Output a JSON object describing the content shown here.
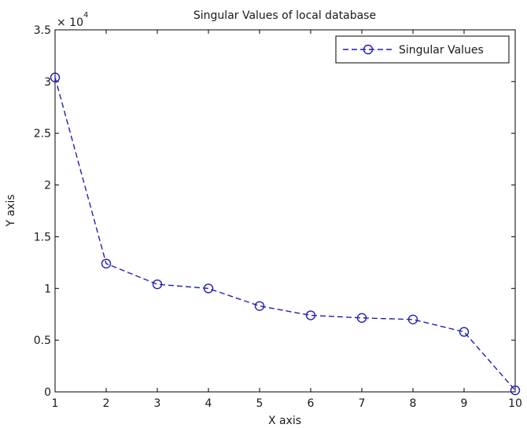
{
  "chart_data": {
    "type": "line",
    "title": "Singular Values of local database",
    "xlabel": "X axis",
    "ylabel": "Y axis",
    "xlim": [
      1,
      10
    ],
    "ylim": [
      0,
      35000
    ],
    "y_multiplier_label": "× 10",
    "y_multiplier_exponent": "4",
    "x_ticks": [
      1,
      2,
      3,
      4,
      5,
      6,
      7,
      8,
      9,
      10
    ],
    "y_ticks": [
      0,
      5000,
      10000,
      15000,
      20000,
      25000,
      30000,
      35000
    ],
    "y_tick_labels": [
      "0",
      "0.5",
      "1",
      "1.5",
      "2",
      "2.5",
      "3",
      "3.5"
    ],
    "grid": false,
    "legend_position": "top-right",
    "series": [
      {
        "name": "Singular Values",
        "color": "#1f1fb4",
        "line_style": "dashed",
        "marker": "circle",
        "x": [
          1,
          2,
          3,
          4,
          5,
          6,
          7,
          8,
          9,
          10
        ],
        "y": [
          30400,
          12400,
          10400,
          10000,
          8300,
          7400,
          7150,
          7000,
          5800,
          150
        ]
      }
    ]
  }
}
